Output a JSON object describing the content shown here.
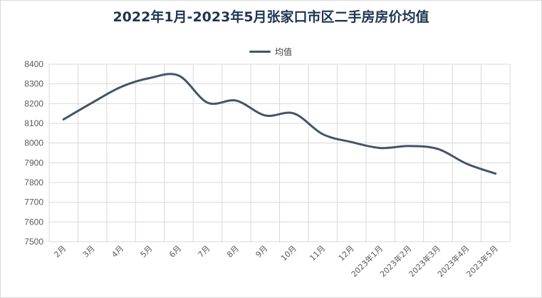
{
  "chart_data": {
    "type": "line",
    "title": "2022年1月-2023年5月张家口市区二手房房价均值",
    "categories": [
      "2月",
      "3月",
      "4月",
      "5月",
      "6月",
      "7月",
      "8月",
      "9月",
      "10月",
      "11月",
      "12月",
      "2023年1月",
      "2023年2月",
      "2023年3月",
      "2023年4月",
      "2023年5月"
    ],
    "series": [
      {
        "name": "均值",
        "values": [
          8120,
          8205,
          8285,
          8330,
          8342,
          8205,
          8215,
          8140,
          8150,
          8045,
          8005,
          7975,
          7985,
          7970,
          7895,
          7845
        ],
        "color": "#44546a"
      }
    ],
    "ylim": [
      7500,
      8400
    ],
    "yticks": [
      "8400",
      "8300",
      "8200",
      "8100",
      "8000",
      "7900",
      "7800",
      "7700",
      "7600",
      "7500"
    ],
    "grid": true,
    "legend_position": "top"
  }
}
